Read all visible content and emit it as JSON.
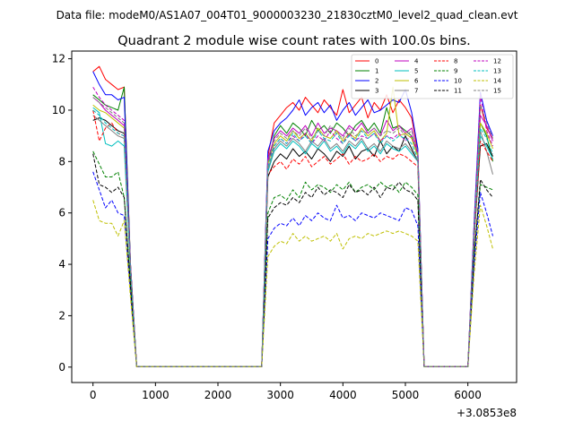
{
  "suptitle": "Data file: modeM0/AS1A07_004T01_9000003230_21830cztM0_level2_quad_clean.evt",
  "chart_data": {
    "type": "line",
    "title": "Quadrant 2 module wise count rates with 100.0s bins.",
    "xlabel": "",
    "ylabel": "",
    "x_offset_label": "+3.0853e8",
    "xlim": [
      -340,
      6780
    ],
    "ylim": [
      -0.6,
      12.3
    ],
    "xticks": [
      0,
      1000,
      2000,
      3000,
      4000,
      5000,
      6000
    ],
    "yticks": [
      0,
      2,
      4,
      6,
      8,
      10,
      12
    ],
    "grid": false,
    "legend_position": "top-right",
    "legend_columns": 4,
    "x": [
      0,
      100,
      200,
      300,
      400,
      500,
      600,
      700,
      800,
      900,
      1000,
      1100,
      1200,
      1300,
      1400,
      1500,
      1600,
      1700,
      1800,
      1900,
      2000,
      2100,
      2200,
      2300,
      2400,
      2500,
      2600,
      2700,
      2800,
      2900,
      3000,
      3100,
      3200,
      3300,
      3400,
      3500,
      3600,
      3700,
      3800,
      3900,
      4000,
      4100,
      4200,
      4300,
      4400,
      4500,
      4600,
      4700,
      4800,
      4900,
      5000,
      5100,
      5200,
      5300,
      5400,
      5500,
      5600,
      5700,
      5800,
      5900,
      6000,
      6100,
      6200,
      6300,
      6400
    ],
    "series": [
      {
        "name": "0",
        "color": "#ff0000",
        "dash": "solid",
        "values": [
          11.5,
          11.7,
          11.2,
          11.0,
          10.8,
          10.9,
          4.0,
          0.02,
          0.02,
          0.02,
          0.02,
          0.02,
          0.02,
          0.02,
          0.02,
          0.02,
          0.02,
          0.02,
          0.02,
          0.02,
          0.02,
          0.02,
          0.02,
          0.02,
          0.02,
          0.02,
          0.02,
          0.02,
          8.2,
          9.5,
          9.8,
          10.1,
          10.3,
          10.0,
          10.5,
          10.2,
          9.9,
          10.4,
          10.1,
          9.8,
          10.8,
          9.9,
          10.2,
          10.5,
          9.7,
          10.3,
          10.0,
          10.6,
          9.9,
          10.4,
          10.1,
          9.7,
          8.4,
          0.02,
          0.02,
          0.02,
          0.02,
          0.02,
          0.02,
          0.02,
          0.02,
          5.5,
          10.2,
          9.3,
          8.9
        ]
      },
      {
        "name": "1",
        "color": "#008000",
        "dash": "solid",
        "values": [
          10.6,
          10.4,
          10.2,
          10.1,
          10.0,
          10.9,
          4.0,
          0.02,
          0.02,
          0.02,
          0.02,
          0.02,
          0.02,
          0.02,
          0.02,
          0.02,
          0.02,
          0.02,
          0.02,
          0.02,
          0.02,
          0.02,
          0.02,
          0.02,
          0.02,
          0.02,
          0.02,
          0.02,
          7.9,
          9.0,
          9.4,
          9.1,
          9.5,
          9.3,
          9.0,
          9.6,
          9.2,
          9.4,
          9.1,
          9.5,
          9.3,
          9.0,
          9.4,
          9.6,
          9.2,
          9.5,
          9.1,
          10.1,
          9.3,
          9.4,
          9.2,
          9.0,
          8.2,
          0.02,
          0.02,
          0.02,
          0.02,
          0.02,
          0.02,
          0.02,
          0.02,
          5.2,
          9.5,
          9.0,
          8.0
        ]
      },
      {
        "name": "2",
        "color": "#0000ff",
        "dash": "solid",
        "values": [
          11.5,
          11.0,
          10.6,
          10.6,
          10.4,
          10.5,
          4.0,
          0.02,
          0.02,
          0.02,
          0.02,
          0.02,
          0.02,
          0.02,
          0.02,
          0.02,
          0.02,
          0.02,
          0.02,
          0.02,
          0.02,
          0.02,
          0.02,
          0.02,
          0.02,
          0.02,
          0.02,
          0.02,
          8.4,
          9.2,
          9.5,
          9.7,
          10.0,
          10.4,
          9.8,
          10.1,
          10.3,
          9.9,
          10.2,
          9.6,
          10.0,
          10.3,
          9.8,
          10.1,
          10.4,
          9.9,
          10.0,
          10.2,
          10.4,
          10.3,
          10.8,
          9.9,
          8.5,
          0.02,
          0.02,
          0.02,
          0.02,
          0.02,
          0.02,
          0.02,
          0.02,
          5.6,
          10.7,
          9.6,
          9.0
        ]
      },
      {
        "name": "3",
        "color": "#000000",
        "dash": "solid",
        "values": [
          9.6,
          9.7,
          9.6,
          9.4,
          9.2,
          9.1,
          3.8,
          0.02,
          0.02,
          0.02,
          0.02,
          0.02,
          0.02,
          0.02,
          0.02,
          0.02,
          0.02,
          0.02,
          0.02,
          0.02,
          0.02,
          0.02,
          0.02,
          0.02,
          0.02,
          0.02,
          0.02,
          0.02,
          7.4,
          8.0,
          8.3,
          8.1,
          8.5,
          8.2,
          8.4,
          8.1,
          8.5,
          8.3,
          8.0,
          8.4,
          8.2,
          8.6,
          8.1,
          8.4,
          8.5,
          8.2,
          8.8,
          8.3,
          8.6,
          8.4,
          9.0,
          8.5,
          8.0,
          0.02,
          0.02,
          0.02,
          0.02,
          0.02,
          0.02,
          0.02,
          0.02,
          5.0,
          8.6,
          8.7,
          8.2
        ]
      },
      {
        "name": "4",
        "color": "#bf00bf",
        "dash": "solid",
        "values": [
          10.5,
          10.3,
          10.0,
          9.8,
          9.6,
          9.4,
          3.9,
          0.02,
          0.02,
          0.02,
          0.02,
          0.02,
          0.02,
          0.02,
          0.02,
          0.02,
          0.02,
          0.02,
          0.02,
          0.02,
          0.02,
          0.02,
          0.02,
          0.02,
          0.02,
          0.02,
          0.02,
          0.02,
          8.1,
          8.9,
          9.2,
          9.0,
          9.3,
          9.1,
          9.4,
          9.0,
          9.5,
          9.1,
          9.3,
          9.2,
          9.0,
          9.4,
          9.2,
          9.5,
          9.1,
          9.3,
          9.0,
          9.6,
          9.2,
          9.4,
          9.1,
          9.3,
          8.3,
          0.02,
          0.02,
          0.02,
          0.02,
          0.02,
          0.02,
          0.02,
          0.02,
          5.3,
          9.8,
          9.4,
          8.8
        ]
      },
      {
        "name": "5",
        "color": "#00bfbf",
        "dash": "solid",
        "values": [
          10.1,
          9.9,
          8.7,
          8.6,
          8.8,
          8.6,
          3.7,
          0.02,
          0.02,
          0.02,
          0.02,
          0.02,
          0.02,
          0.02,
          0.02,
          0.02,
          0.02,
          0.02,
          0.02,
          0.02,
          0.02,
          0.02,
          0.02,
          0.02,
          0.02,
          0.02,
          0.02,
          0.02,
          7.6,
          8.4,
          8.7,
          8.5,
          8.8,
          8.6,
          8.3,
          8.7,
          8.5,
          8.8,
          8.4,
          8.6,
          8.3,
          8.7,
          8.5,
          8.8,
          8.4,
          8.6,
          8.3,
          8.7,
          8.5,
          8.4,
          8.6,
          8.3,
          8.0,
          0.02,
          0.02,
          0.02,
          0.02,
          0.02,
          0.02,
          0.02,
          0.02,
          5.1,
          9.0,
          8.6,
          8.1
        ]
      },
      {
        "name": "6",
        "color": "#bfbf00",
        "dash": "solid",
        "values": [
          10.2,
          10.0,
          9.9,
          9.7,
          9.5,
          9.3,
          3.9,
          0.02,
          0.02,
          0.02,
          0.02,
          0.02,
          0.02,
          0.02,
          0.02,
          0.02,
          0.02,
          0.02,
          0.02,
          0.02,
          0.02,
          0.02,
          0.02,
          0.02,
          0.02,
          0.02,
          0.02,
          0.02,
          7.9,
          8.7,
          9.0,
          8.8,
          9.2,
          8.9,
          9.1,
          8.8,
          9.3,
          9.0,
          8.9,
          9.2,
          8.8,
          9.1,
          8.9,
          9.3,
          9.0,
          9.2,
          8.8,
          9.1,
          10.9,
          9.0,
          9.1,
          8.9,
          8.2,
          0.02,
          0.02,
          0.02,
          0.02,
          0.02,
          0.02,
          0.02,
          0.02,
          5.2,
          9.5,
          9.1,
          8.5
        ]
      },
      {
        "name": "7",
        "color": "#808080",
        "dash": "solid",
        "values": [
          9.8,
          9.6,
          9.4,
          9.2,
          9.0,
          8.9,
          3.8,
          0.02,
          0.02,
          0.02,
          0.02,
          0.02,
          0.02,
          0.02,
          0.02,
          0.02,
          0.02,
          0.02,
          0.02,
          0.02,
          0.02,
          0.02,
          0.02,
          0.02,
          0.02,
          0.02,
          0.02,
          0.02,
          7.7,
          8.5,
          8.8,
          8.6,
          8.9,
          8.7,
          8.4,
          8.8,
          8.6,
          8.9,
          8.5,
          8.7,
          8.4,
          8.8,
          8.6,
          8.9,
          8.5,
          8.7,
          8.4,
          8.8,
          8.6,
          8.5,
          8.7,
          8.4,
          8.0,
          0.02,
          0.02,
          0.02,
          0.02,
          0.02,
          0.02,
          0.02,
          0.02,
          5.0,
          9.2,
          8.4,
          7.5
        ]
      },
      {
        "name": "8",
        "color": "#ff0000",
        "dash": "dashed",
        "values": [
          10.0,
          8.8,
          9.3,
          9.5,
          9.1,
          9.0,
          3.8,
          0.02,
          0.02,
          0.02,
          0.02,
          0.02,
          0.02,
          0.02,
          0.02,
          0.02,
          0.02,
          0.02,
          0.02,
          0.02,
          0.02,
          0.02,
          0.02,
          0.02,
          0.02,
          0.02,
          0.02,
          0.02,
          7.5,
          7.8,
          8.0,
          7.7,
          8.1,
          7.9,
          8.2,
          7.8,
          8.0,
          8.2,
          7.9,
          8.1,
          8.3,
          7.9,
          8.2,
          8.0,
          8.1,
          8.3,
          8.0,
          8.2,
          8.1,
          8.3,
          8.2,
          8.0,
          7.8,
          0.02,
          0.02,
          0.02,
          0.02,
          0.02,
          0.02,
          0.02,
          0.02,
          4.9,
          8.8,
          8.4,
          8.0
        ]
      },
      {
        "name": "9",
        "color": "#008000",
        "dash": "dashed",
        "values": [
          8.4,
          7.9,
          7.4,
          7.4,
          7.6,
          6.6,
          3.2,
          0.02,
          0.02,
          0.02,
          0.02,
          0.02,
          0.02,
          0.02,
          0.02,
          0.02,
          0.02,
          0.02,
          0.02,
          0.02,
          0.02,
          0.02,
          0.02,
          0.02,
          0.02,
          0.02,
          0.02,
          0.02,
          6.0,
          6.6,
          6.7,
          6.5,
          6.9,
          6.6,
          7.2,
          6.9,
          7.1,
          7.0,
          6.8,
          7.1,
          6.9,
          7.2,
          6.8,
          7.0,
          7.1,
          6.9,
          7.2,
          7.0,
          7.1,
          6.8,
          7.2,
          7.0,
          6.7,
          0.02,
          0.02,
          0.02,
          0.02,
          0.02,
          0.02,
          0.02,
          0.02,
          4.4,
          7.1,
          7.0,
          6.9
        ]
      },
      {
        "name": "10",
        "color": "#0000ff",
        "dash": "dashed",
        "values": [
          7.6,
          6.9,
          6.2,
          6.5,
          6.0,
          5.9,
          2.9,
          0.02,
          0.02,
          0.02,
          0.02,
          0.02,
          0.02,
          0.02,
          0.02,
          0.02,
          0.02,
          0.02,
          0.02,
          0.02,
          0.02,
          0.02,
          0.02,
          0.02,
          0.02,
          0.02,
          0.02,
          0.02,
          5.0,
          5.4,
          5.6,
          5.5,
          5.8,
          5.5,
          5.9,
          5.7,
          6.0,
          5.8,
          5.7,
          6.3,
          5.8,
          5.9,
          5.7,
          6.0,
          5.9,
          5.8,
          6.0,
          5.9,
          5.8,
          5.7,
          6.2,
          6.1,
          5.5,
          0.02,
          0.02,
          0.02,
          0.02,
          0.02,
          0.02,
          0.02,
          0.02,
          4.0,
          6.8,
          6.0,
          5.1
        ]
      },
      {
        "name": "11",
        "color": "#000000",
        "dash": "dashed",
        "values": [
          8.3,
          7.1,
          7.0,
          6.8,
          7.0,
          6.6,
          3.2,
          0.02,
          0.02,
          0.02,
          0.02,
          0.02,
          0.02,
          0.02,
          0.02,
          0.02,
          0.02,
          0.02,
          0.02,
          0.02,
          0.02,
          0.02,
          0.02,
          0.02,
          0.02,
          0.02,
          0.02,
          0.02,
          5.8,
          6.2,
          6.4,
          6.3,
          6.6,
          6.4,
          6.8,
          6.6,
          7.0,
          6.7,
          6.9,
          6.8,
          6.6,
          7.1,
          6.8,
          6.9,
          6.7,
          7.0,
          6.6,
          7.0,
          6.9,
          7.2,
          6.9,
          6.8,
          6.5,
          0.02,
          0.02,
          0.02,
          0.02,
          0.02,
          0.02,
          0.02,
          0.02,
          4.3,
          7.3,
          6.9,
          6.6
        ]
      },
      {
        "name": "12",
        "color": "#bf00bf",
        "dash": "dashed",
        "values": [
          10.9,
          10.5,
          10.2,
          10.0,
          9.8,
          9.6,
          4.0,
          0.02,
          0.02,
          0.02,
          0.02,
          0.02,
          0.02,
          0.02,
          0.02,
          0.02,
          0.02,
          0.02,
          0.02,
          0.02,
          0.02,
          0.02,
          0.02,
          0.02,
          0.02,
          0.02,
          0.02,
          0.02,
          8.0,
          8.6,
          8.9,
          8.7,
          9.0,
          8.8,
          9.1,
          8.7,
          9.0,
          8.8,
          9.2,
          8.9,
          8.7,
          9.1,
          8.8,
          9.0,
          8.9,
          9.1,
          8.8,
          9.0,
          8.9,
          9.1,
          8.8,
          9.0,
          8.3,
          0.02,
          0.02,
          0.02,
          0.02,
          0.02,
          0.02,
          0.02,
          0.02,
          5.3,
          10.6,
          9.2,
          8.6
        ]
      },
      {
        "name": "13",
        "color": "#00bfbf",
        "dash": "dashed",
        "values": [
          10.0,
          9.8,
          9.5,
          9.3,
          9.1,
          9.0,
          3.8,
          0.02,
          0.02,
          0.02,
          0.02,
          0.02,
          0.02,
          0.02,
          0.02,
          0.02,
          0.02,
          0.02,
          0.02,
          0.02,
          0.02,
          0.02,
          0.02,
          0.02,
          0.02,
          0.02,
          0.02,
          0.02,
          7.8,
          8.6,
          8.9,
          8.7,
          9.1,
          8.8,
          9.0,
          8.7,
          9.2,
          8.9,
          8.8,
          9.1,
          8.7,
          9.0,
          8.8,
          9.2,
          8.9,
          9.1,
          8.7,
          9.0,
          8.8,
          9.0,
          8.9,
          8.7,
          8.1,
          0.02,
          0.02,
          0.02,
          0.02,
          0.02,
          0.02,
          0.02,
          0.02,
          5.1,
          9.3,
          8.9,
          8.3
        ]
      },
      {
        "name": "14",
        "color": "#bfbf00",
        "dash": "dashed",
        "values": [
          6.5,
          5.7,
          5.6,
          5.6,
          5.1,
          5.7,
          2.7,
          0.02,
          0.02,
          0.02,
          0.02,
          0.02,
          0.02,
          0.02,
          0.02,
          0.02,
          0.02,
          0.02,
          0.02,
          0.02,
          0.02,
          0.02,
          0.02,
          0.02,
          0.02,
          0.02,
          0.02,
          0.02,
          4.3,
          4.7,
          4.9,
          4.8,
          5.2,
          4.9,
          5.1,
          4.9,
          5.0,
          5.1,
          4.9,
          5.2,
          4.6,
          5.0,
          5.1,
          5.0,
          5.2,
          5.1,
          5.2,
          5.3,
          5.2,
          5.3,
          5.2,
          5.1,
          4.9,
          0.02,
          0.02,
          0.02,
          0.02,
          0.02,
          0.02,
          0.02,
          0.02,
          3.6,
          6.3,
          5.5,
          4.6
        ]
      },
      {
        "name": "15",
        "color": "#808080",
        "dash": "dashed",
        "values": [
          10.5,
          10.3,
          10.1,
          9.9,
          9.7,
          9.5,
          3.9,
          0.02,
          0.02,
          0.02,
          0.02,
          0.02,
          0.02,
          0.02,
          0.02,
          0.02,
          0.02,
          0.02,
          0.02,
          0.02,
          0.02,
          0.02,
          0.02,
          0.02,
          0.02,
          0.02,
          0.02,
          0.02,
          8.0,
          8.8,
          9.1,
          8.9,
          9.2,
          9.0,
          9.3,
          8.9,
          9.2,
          9.0,
          9.4,
          9.1,
          8.9,
          9.3,
          9.0,
          9.2,
          9.1,
          9.3,
          9.0,
          9.2,
          9.1,
          9.3,
          9.0,
          9.2,
          8.4,
          0.02,
          0.02,
          0.02,
          0.02,
          0.02,
          0.02,
          0.02,
          0.02,
          5.4,
          10.2,
          9.5,
          8.9
        ]
      }
    ]
  }
}
